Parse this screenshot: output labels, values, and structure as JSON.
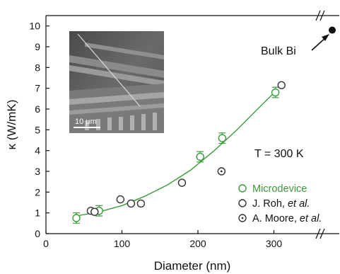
{
  "chart_data": {
    "type": "scatter",
    "xlabel": "Diameter (nm)",
    "ylabel": "κ (W/mK)",
    "xlim": [
      0,
      360
    ],
    "ylim": [
      0,
      10.5
    ],
    "x_ticks": [
      "0",
      "100",
      "200",
      "300"
    ],
    "y_ticks": [
      "0",
      "1",
      "2",
      "3",
      "4",
      "5",
      "6",
      "7",
      "8",
      "9",
      "10"
    ],
    "temperature_label": "T = 300 K",
    "bulk_label": "Bulk Bi",
    "bulk_point": {
      "y": 9.8
    },
    "axis_break": true,
    "colors": {
      "microdevice": "#3a9a3a",
      "fit": "#3a9a3a",
      "reference": "#333333",
      "axis": "#111111"
    },
    "legend_position": "bottom-right",
    "series": [
      {
        "name": "Microdevice",
        "marker": "open-circle-with-errorbar",
        "color": "#3a9a3a",
        "points": [
          {
            "x": 40,
            "y": 0.75,
            "err": 0.25
          },
          {
            "x": 70,
            "y": 1.1,
            "err": 0.25
          },
          {
            "x": 203,
            "y": 3.7,
            "err": 0.25
          },
          {
            "x": 232,
            "y": 4.6,
            "err": 0.25
          },
          {
            "x": 302,
            "y": 6.8,
            "err": 0.25
          }
        ]
      },
      {
        "name": "J. Roh, et al.",
        "marker": "open-circle",
        "color": "#333333",
        "points": [
          {
            "x": 59,
            "y": 1.1
          },
          {
            "x": 64,
            "y": 1.05
          },
          {
            "x": 98,
            "y": 1.65
          },
          {
            "x": 112,
            "y": 1.45
          },
          {
            "x": 125,
            "y": 1.45
          },
          {
            "x": 179,
            "y": 2.45
          },
          {
            "x": 310,
            "y": 7.15
          }
        ]
      },
      {
        "name": "A. Moore, et al.",
        "marker": "dotted-circle",
        "color": "#333333",
        "points": [
          {
            "x": 231,
            "y": 3.0
          }
        ]
      }
    ],
    "fit_curve": [
      {
        "x": 40,
        "y": 0.85
      },
      {
        "x": 70,
        "y": 1.05
      },
      {
        "x": 100,
        "y": 1.35
      },
      {
        "x": 130,
        "y": 1.8
      },
      {
        "x": 160,
        "y": 2.35
      },
      {
        "x": 190,
        "y": 3.05
      },
      {
        "x": 220,
        "y": 3.95
      },
      {
        "x": 250,
        "y": 4.95
      },
      {
        "x": 280,
        "y": 6.05
      },
      {
        "x": 305,
        "y": 6.95
      }
    ],
    "inset": {
      "scale_bar_label": "10 μm"
    }
  }
}
